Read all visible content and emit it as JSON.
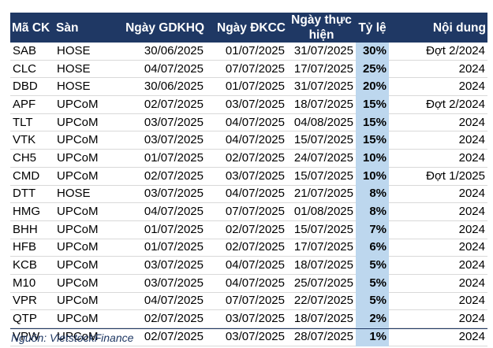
{
  "table": {
    "headers": {
      "ticker": "Mã CK",
      "exchange": "Sàn",
      "ex_date": "Ngày GDKHQ",
      "record_date": "Ngày ĐKCC",
      "pay_date_line1": "Ngày thực",
      "pay_date_line2": "hiện",
      "rate": "Tỷ lệ",
      "content": "Nội dung"
    },
    "rows": [
      {
        "ticker": "SAB",
        "exchange": "HOSE",
        "ex_date": "30/06/2025",
        "record_date": "01/07/2025",
        "pay_date": "31/07/2025",
        "rate": "30%",
        "content": "Đợt 2/2024"
      },
      {
        "ticker": "CLC",
        "exchange": "HOSE",
        "ex_date": "04/07/2025",
        "record_date": "07/07/2025",
        "pay_date": "17/07/2025",
        "rate": "25%",
        "content": "2024"
      },
      {
        "ticker": "DBD",
        "exchange": "HOSE",
        "ex_date": "30/06/2025",
        "record_date": "01/07/2025",
        "pay_date": "31/07/2025",
        "rate": "20%",
        "content": "2024"
      },
      {
        "ticker": "APF",
        "exchange": "UPCoM",
        "ex_date": "02/07/2025",
        "record_date": "03/07/2025",
        "pay_date": "18/07/2025",
        "rate": "15%",
        "content": "Đợt 2/2024"
      },
      {
        "ticker": "TLT",
        "exchange": "UPCoM",
        "ex_date": "03/07/2025",
        "record_date": "04/07/2025",
        "pay_date": "04/08/2025",
        "rate": "15%",
        "content": "2024"
      },
      {
        "ticker": "VTK",
        "exchange": "UPCoM",
        "ex_date": "03/07/2025",
        "record_date": "04/07/2025",
        "pay_date": "15/07/2025",
        "rate": "15%",
        "content": "2024"
      },
      {
        "ticker": "CH5",
        "exchange": "UPCoM",
        "ex_date": "01/07/2025",
        "record_date": "02/07/2025",
        "pay_date": "24/07/2025",
        "rate": "10%",
        "content": "2024"
      },
      {
        "ticker": "CMD",
        "exchange": "UPCoM",
        "ex_date": "02/07/2025",
        "record_date": "03/07/2025",
        "pay_date": "15/07/2025",
        "rate": "10%",
        "content": "Đợt 1/2025"
      },
      {
        "ticker": "DTT",
        "exchange": "HOSE",
        "ex_date": "03/07/2025",
        "record_date": "04/07/2025",
        "pay_date": "21/07/2025",
        "rate": "8%",
        "content": "2024"
      },
      {
        "ticker": "HMG",
        "exchange": "UPCoM",
        "ex_date": "04/07/2025",
        "record_date": "07/07/2025",
        "pay_date": "01/08/2025",
        "rate": "8%",
        "content": "2024"
      },
      {
        "ticker": "BHH",
        "exchange": "UPCoM",
        "ex_date": "01/07/2025",
        "record_date": "02/07/2025",
        "pay_date": "15/07/2025",
        "rate": "7%",
        "content": "2024"
      },
      {
        "ticker": "HFB",
        "exchange": "UPCoM",
        "ex_date": "01/07/2025",
        "record_date": "02/07/2025",
        "pay_date": "17/07/2025",
        "rate": "6%",
        "content": "2024"
      },
      {
        "ticker": "KCB",
        "exchange": "UPCoM",
        "ex_date": "03/07/2025",
        "record_date": "04/07/2025",
        "pay_date": "18/07/2025",
        "rate": "5%",
        "content": "2024"
      },
      {
        "ticker": "M10",
        "exchange": "UPCoM",
        "ex_date": "03/07/2025",
        "record_date": "04/07/2025",
        "pay_date": "25/07/2025",
        "rate": "5%",
        "content": "2024"
      },
      {
        "ticker": "VPR",
        "exchange": "UPCoM",
        "ex_date": "04/07/2025",
        "record_date": "07/07/2025",
        "pay_date": "22/07/2025",
        "rate": "5%",
        "content": "2024"
      },
      {
        "ticker": "QTP",
        "exchange": "UPCoM",
        "ex_date": "02/07/2025",
        "record_date": "03/07/2025",
        "pay_date": "18/07/2025",
        "rate": "2%",
        "content": "2024"
      },
      {
        "ticker": "VPW",
        "exchange": "UPCoM",
        "ex_date": "02/07/2025",
        "record_date": "03/07/2025",
        "pay_date": "28/07/2025",
        "rate": "1%",
        "content": "2024"
      }
    ]
  },
  "footer": {
    "source": "Nguồn: VietstockFinance"
  },
  "colors": {
    "header_bg": "#1f3864",
    "rate_highlight": "#bdd7ee"
  }
}
